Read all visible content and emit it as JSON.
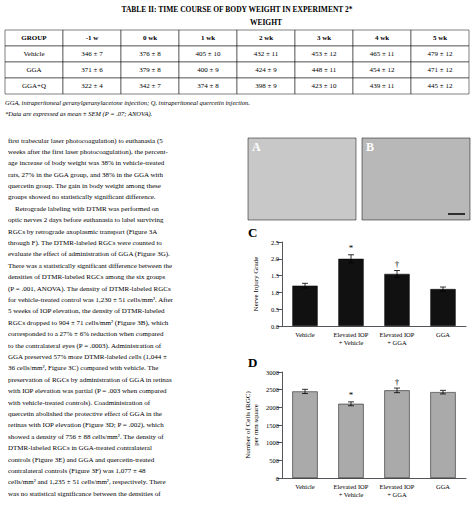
{
  "chart_data": [
    {
      "type": "table",
      "title": "TABLE II: TIME COURSE OF BODY WEIGHT IN EXPERIMENT 2*",
      "subtitle": "WEIGHT",
      "columns": [
        "GROUP",
        "-1 w",
        "0 wk",
        "1 wk",
        "2 wk",
        "3 wk",
        "4 wk",
        "5 wk"
      ],
      "rows": [
        [
          "Vehicle",
          "346 ± 7",
          "376 ± 8",
          "405 ± 10",
          "432 ± 11",
          "453 ± 12",
          "465 ± 11",
          "479 ± 12"
        ],
        [
          "GGA",
          "371 ± 6",
          "379 ± 8",
          "400 ± 9",
          "424 ± 9",
          "448 ± 11",
          "454 ± 12",
          "471 ± 12"
        ],
        [
          "GGA+Q",
          "322 ± 4",
          "342 ± 7",
          "374 ± 8",
          "398 ± 9",
          "423 ± 10",
          "439 ± 11",
          "445 ± 12"
        ]
      ],
      "annotations": [
        "GGA, intraperitoneal geranylgeranylacetone injection; Q, intraperitoneal quercetin injection.",
        "*Data are expressed as mean ± SEM (P = .07; ANOVA)."
      ]
    },
    {
      "type": "text",
      "lines": [
        "first trabecular laser photocoagulation) to euthanasia (5",
        "weeks after the first laser photocoagulation), the percent-",
        "age increase of body weight was 38% in vehicle-treated",
        "rats, 27% in the GGA group, and 38% in the GGA with",
        "quercetin group. The gain in body weight among these",
        "groups showed no statistically significant difference.",
        "    Retrograde labeling with DTMR was performed on",
        "optic nerves 2 days before euthanasia to label surviving",
        "RGCs by retrograde axoplasmic transport (Figure 3A",
        "through F). The DTMR-labeled RGCs were counted to",
        "evaluate the effect of administration of GGA (Figure 3G).",
        "There was a statistically significant difference between the",
        "densities of DTMR-labeled RGCs among the six groups",
        "(P = .001, ANOVA). The density of DTMR-labeled RGCs",
        "for vehicle-treated control was 1,230 ± 51 cells/mm². After",
        "5 weeks of IOP elevation, the density of DTMR-labeled",
        "RGCs dropped to 904 ± 71 cells/mm² (Figure 3B), which",
        "corresponded to a 27% ± 6% reduction when compared",
        "to the contralateral eyes (P = .0003). Administration of",
        "GGA preserved 57% more DTMR-labeled cells (1,044 ±",
        "36 cells/mm², Figure 3C) compared with vehicle. The",
        "preservation of RGCs by administration of GGA in retinas",
        "with IOP elevation was partial (P = .003 when compared",
        "with vehicle-treated controls). Coadministration of",
        "quercetin abolished the protective effect of GGA in the",
        "retinas with IOP elevation (Figure 3D; P = .002), which",
        "showed a density of 756 ± 88 cells/mm². The density of",
        "DTMR-labeled RGCs in GGA-treated contralateral",
        "controls (Figure 3E) and GGA and quercetin-treated",
        "contralateral controls (Figure 3F) was 1,077 ± 48",
        "cells/mm² and 1,235 ± 51 cells/mm², respectively. There",
        "was no statistical significance between the densities of"
      ]
    },
    {
      "type": "micrograph",
      "labels": [
        "A",
        "B"
      ],
      "colors": [
        "#c8c8c8",
        "#b8b8b8"
      ]
    },
    {
      "type": "bar",
      "title": "C",
      "ylabel": "Nerve Injury Grade",
      "categories": [
        "Vehicle",
        "Elevated IOP\n+ Vehicle",
        "Elevated IOP\n+ GGA",
        "GGA"
      ],
      "values": [
        1.2,
        2.0,
        1.55,
        1.1
      ],
      "errors": [
        0.07,
        0.12,
        0.1,
        0.06
      ],
      "annotations": [
        null,
        "*",
        "†",
        null
      ],
      "color": "#111111",
      "ylim": [
        0,
        2.5
      ],
      "yticks": [
        {
          "value": 0,
          "label": "0.0"
        },
        0.5,
        {
          "value": 1.0,
          "label": "1.0"
        },
        1.5,
        {
          "value": 2.0,
          "label": "2.0"
        },
        2.5
      ],
      "grid": false
    },
    {
      "type": "bar",
      "title": "D",
      "ylabel": "Number of Cells (RGC)\nper mm square",
      "categories": [
        "Vehicle",
        "Elevated IOP\n+ Vehicle",
        "Elevated IOP\n+ GGA",
        "GGA"
      ],
      "values": [
        2450,
        2100,
        2480,
        2430
      ],
      "errors": [
        60,
        55,
        65,
        50
      ],
      "annotations": [
        null,
        "*",
        "†",
        null
      ],
      "color": "#aaaaaa",
      "ylim": [
        0,
        3000
      ],
      "yticks": [
        0,
        500,
        1000,
        1500,
        2000,
        2500,
        3000
      ],
      "grid": false
    }
  ]
}
